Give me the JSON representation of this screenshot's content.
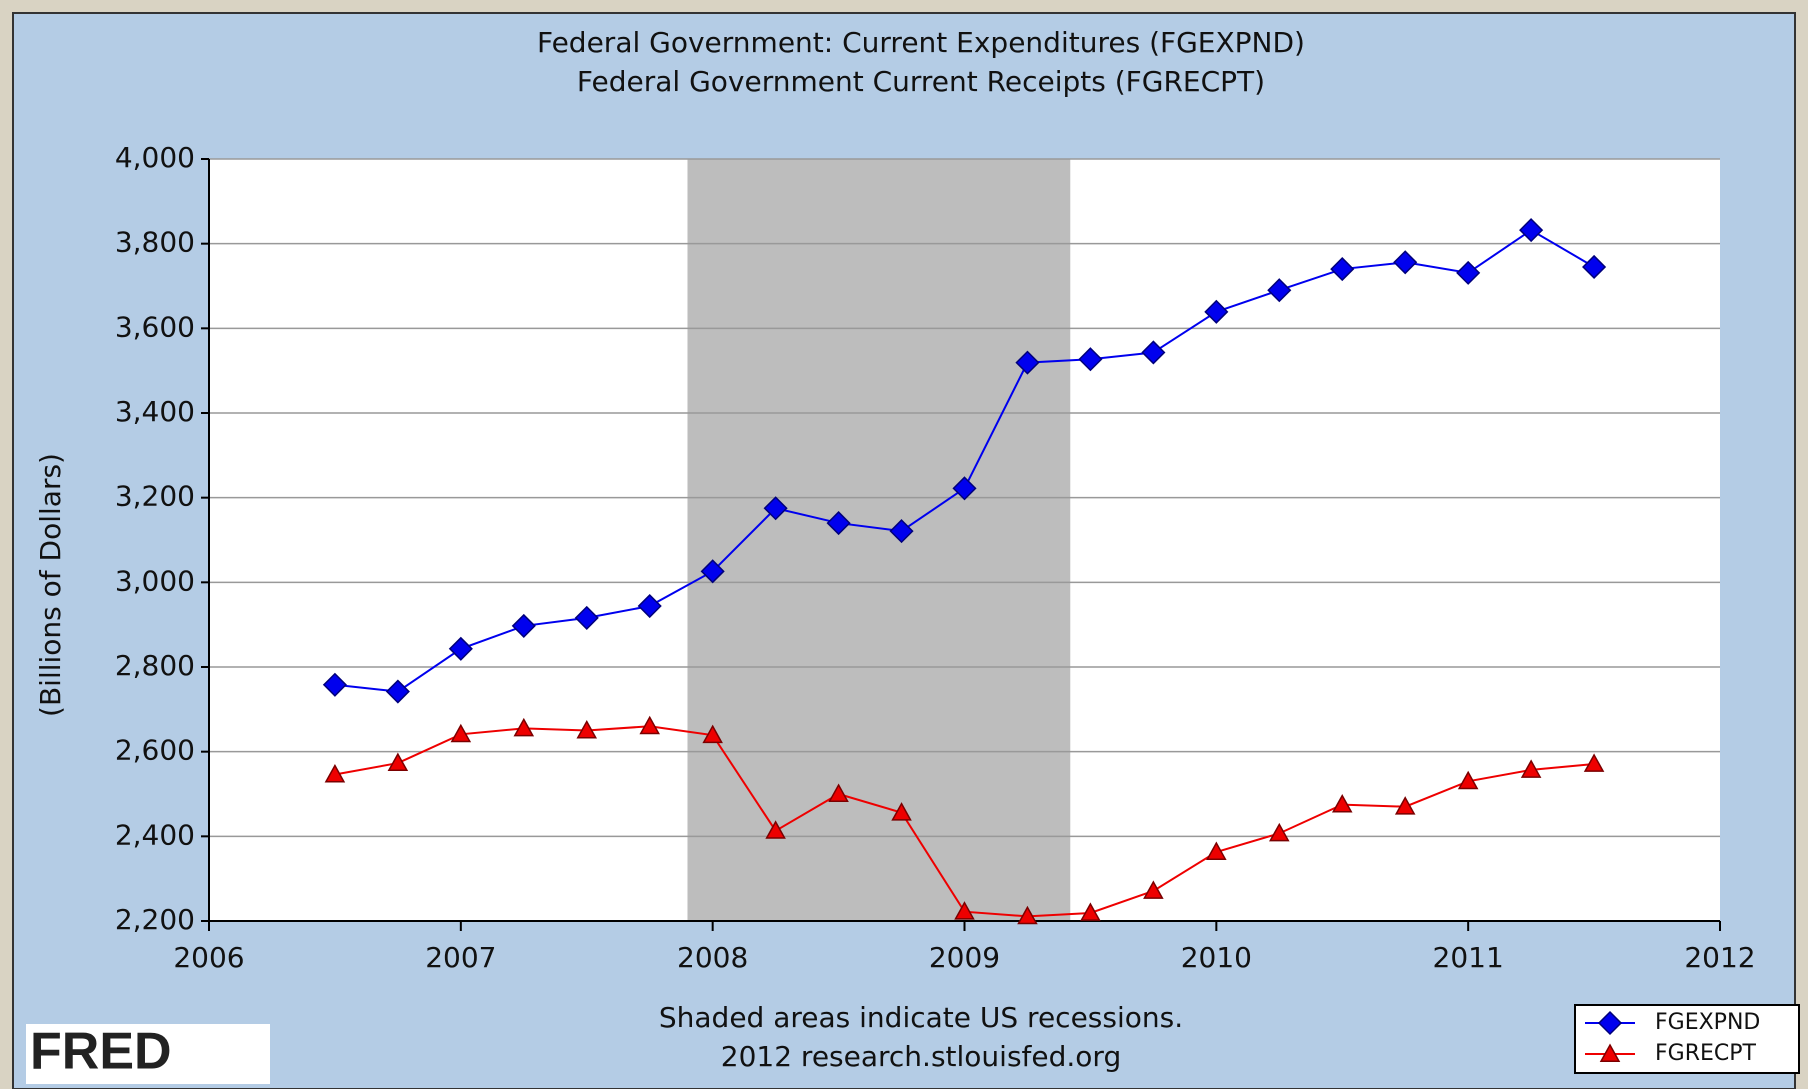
{
  "chart_data": {
    "type": "line",
    "title": "Federal Government: Current Expenditures (FGEXPND)",
    "subtitle": "Federal Government Current Receipts (FGRECPT)",
    "ylabel": "(Billions of Dollars)",
    "footnote": "Shaded areas indicate US recessions.",
    "source": "2012 research.stlouisfed.org",
    "logo": "FRED",
    "x": [
      2006.5,
      2006.75,
      2007.0,
      2007.25,
      2007.5,
      2007.75,
      2008.0,
      2008.25,
      2008.5,
      2008.75,
      2009.0,
      2009.25,
      2009.5,
      2009.75,
      2010.0,
      2010.25,
      2010.5,
      2010.75,
      2011.0,
      2011.25,
      2011.5
    ],
    "series": [
      {
        "name": "FGEXPND",
        "color": "#0000ee",
        "marker": "diamond",
        "values": [
          2758,
          2742,
          2843,
          2897,
          2916,
          2944,
          3026,
          3175,
          3140,
          3121,
          3222,
          3519,
          3527,
          3543,
          3639,
          3690,
          3740,
          3756,
          3731,
          3832,
          3745
        ]
      },
      {
        "name": "FGRECPT",
        "color": "#ee0000",
        "marker": "triangle",
        "values": [
          2546,
          2573,
          2641,
          2655,
          2650,
          2660,
          2639,
          2413,
          2500,
          2456,
          2222,
          2211,
          2219,
          2271,
          2363,
          2407,
          2475,
          2470,
          2530,
          2557,
          2571
        ]
      }
    ],
    "recessions": [
      {
        "start": 2007.9,
        "end": 2009.42
      }
    ],
    "xlim": [
      2006,
      2012
    ],
    "xticks": [
      2006,
      2007,
      2008,
      2009,
      2010,
      2011,
      2012
    ],
    "ylim": [
      2200,
      4000
    ],
    "yticks": [
      {
        "value": 2200,
        "label": "2,200"
      },
      {
        "value": 2400,
        "label": "2,400"
      },
      {
        "value": 2600,
        "label": "2,600"
      },
      {
        "value": 2800,
        "label": "2,800"
      },
      {
        "value": 3000,
        "label": "3,000"
      },
      {
        "value": 3200,
        "label": "3,200"
      },
      {
        "value": 3400,
        "label": "3,400"
      },
      {
        "value": 3600,
        "label": "3,600"
      },
      {
        "value": 3800,
        "label": "3,800"
      },
      {
        "value": 4000,
        "label": "4,000"
      }
    ],
    "grid": true,
    "legend": "lower right"
  }
}
